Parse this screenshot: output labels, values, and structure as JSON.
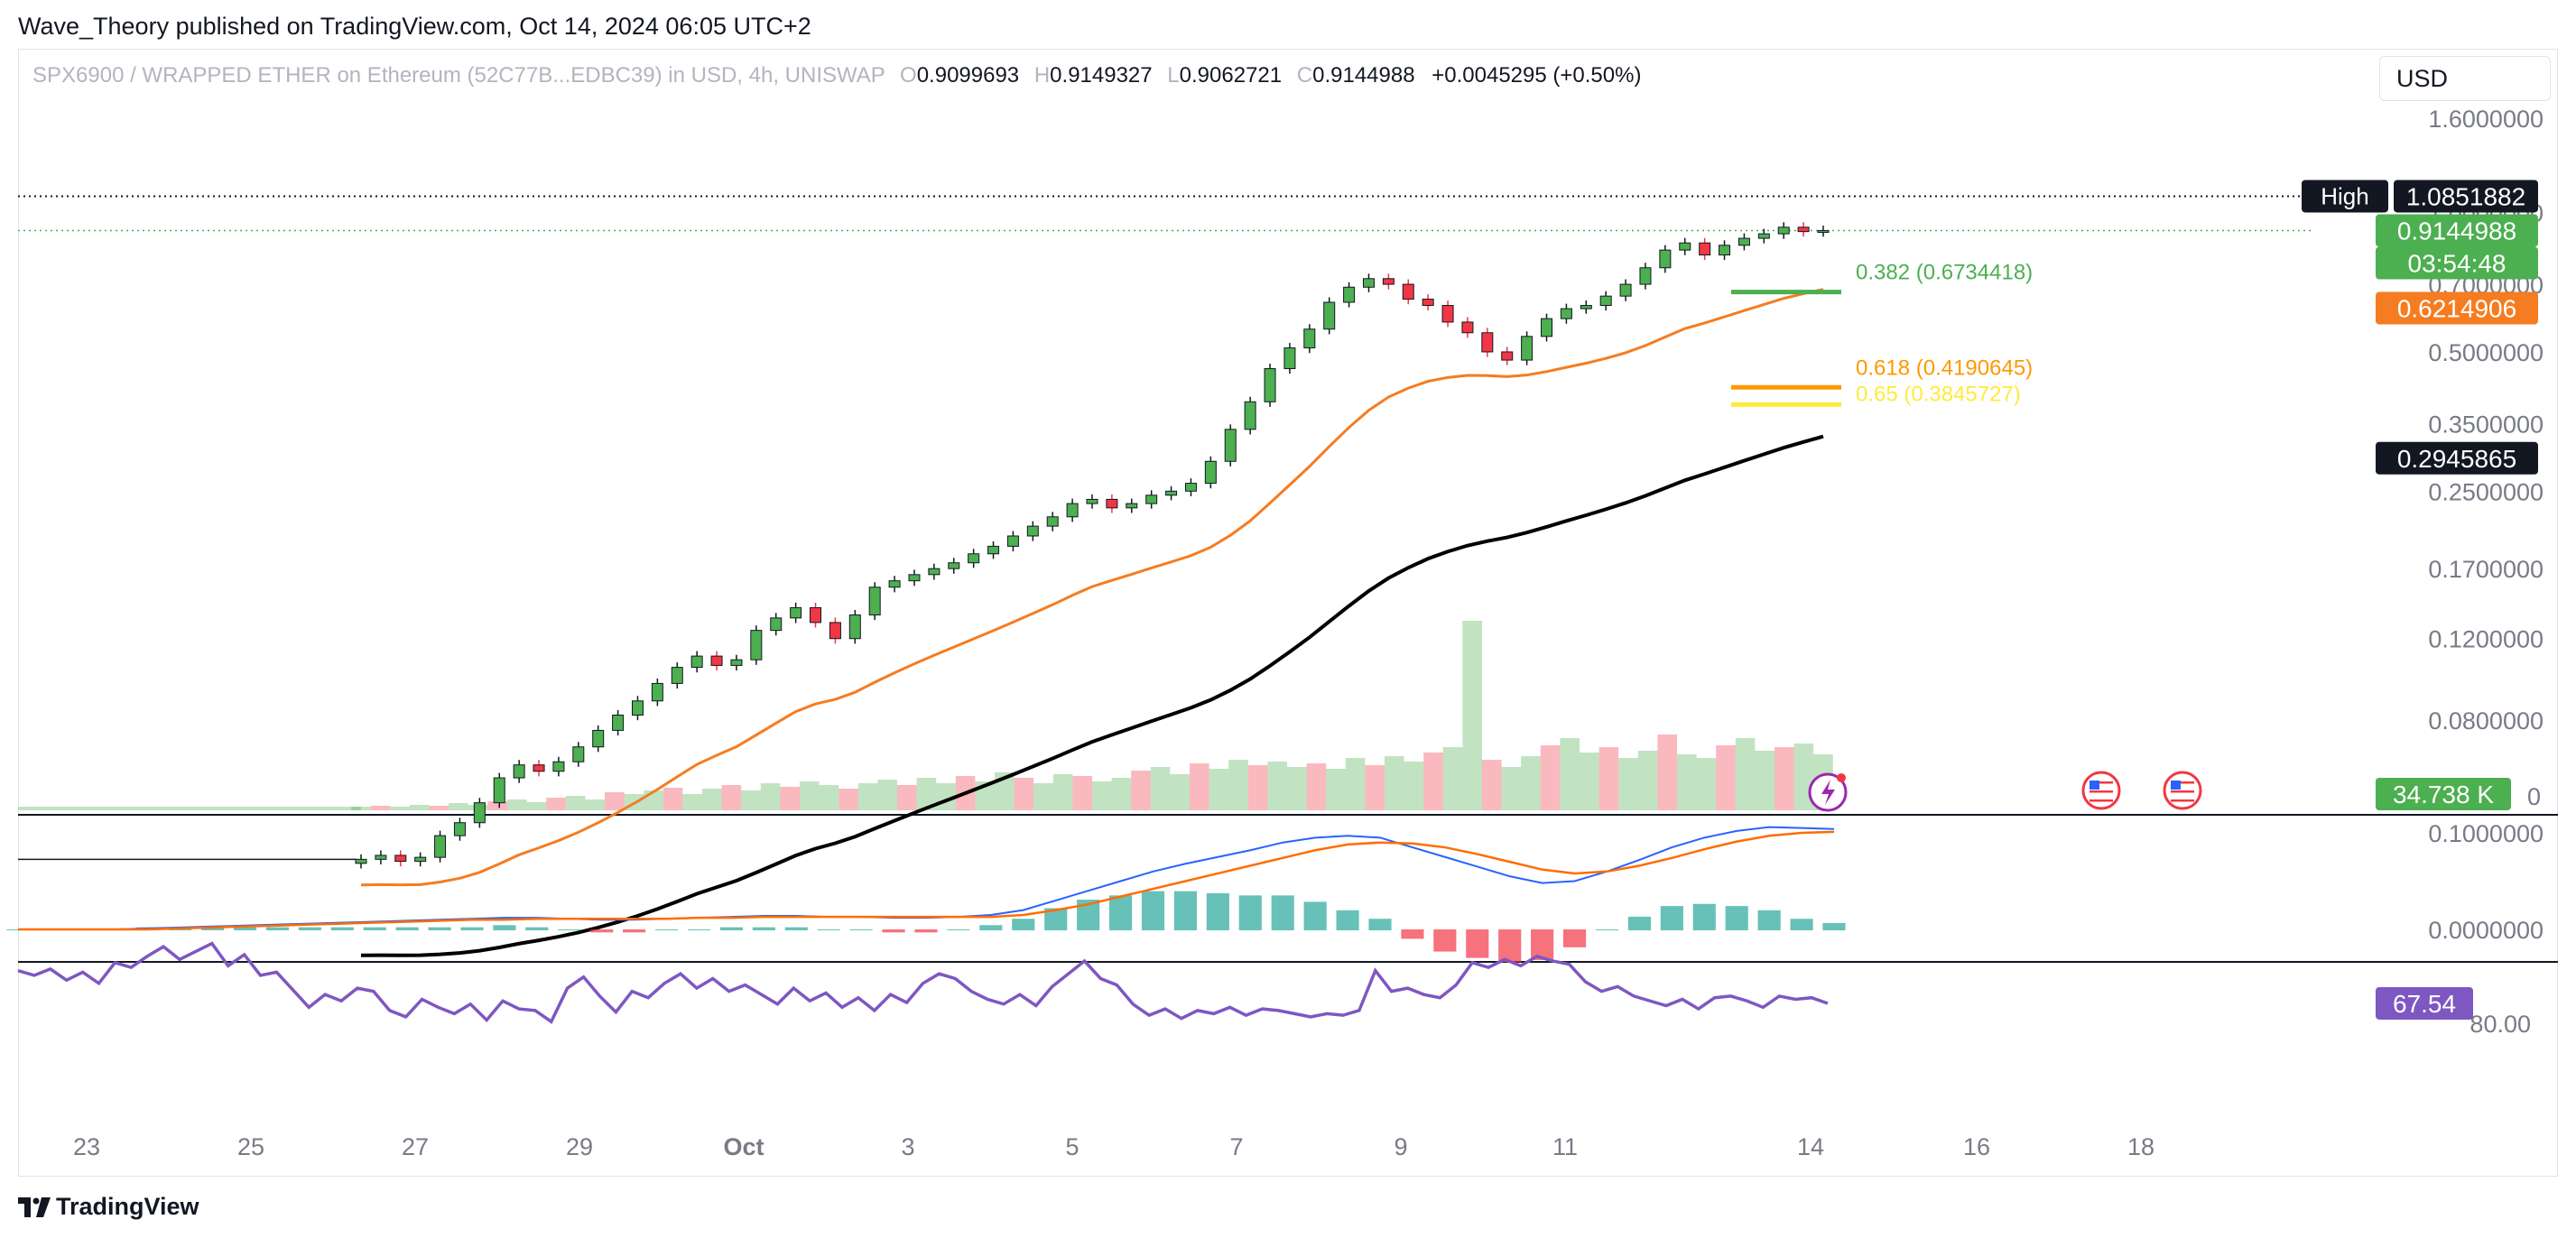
{
  "header": {
    "published": "Wave_Theory published on TradingView.com, Oct 14, 2024 06:05 UTC+2"
  },
  "legend": {
    "symbol": "SPX6900 / WRAPPED ETHER on Ethereum (52C77B...EDBC39) in USD, 4h, UNISWAP",
    "o_label": "O",
    "o": "0.9099693",
    "h_label": "H",
    "h": "0.9149327",
    "l_label": "L",
    "l": "0.9062721",
    "c_label": "C",
    "c": "0.9144988",
    "change": "+0.0045295 (+0.50%)"
  },
  "currency": "USD",
  "footer": {
    "brand": "TradingView"
  },
  "colors": {
    "up": "#26a69a",
    "candle_up": "#4caf50",
    "down": "#f23645",
    "ema50": "#f57c20",
    "ema200": "#000000",
    "macd": "#2962ff",
    "signal": "#ff6d00",
    "rsi": "#7e57c2",
    "fib382": "#4caf50",
    "fib618": "#ff9800",
    "fib65": "#ffeb3b"
  },
  "chart_data": [
    {
      "type": "candlestick",
      "title": "SPX6900 / WRAPPED ETHER on Ethereum (52C77B...EDBC39) in USD, 4h, UNISWAP",
      "scale": "log",
      "price_axis_ticks": [
        "1.6000000",
        "1.0000000",
        "0.7000000",
        "0.5000000",
        "0.3500000",
        "0.2500000",
        "0.1700000",
        "0.1200000",
        "0.0800000"
      ],
      "time_axis_ticks": [
        "23",
        "25",
        "27",
        "29",
        "Oct",
        "3",
        "5",
        "7",
        "9",
        "11",
        "14",
        "16",
        "18"
      ],
      "candle_closes_4h_approx": [
        0.04,
        0.0408,
        0.0396,
        0.0404,
        0.045,
        0.048,
        0.053,
        0.06,
        0.064,
        0.062,
        0.065,
        0.07,
        0.076,
        0.082,
        0.088,
        0.096,
        0.104,
        0.11,
        0.105,
        0.108,
        0.125,
        0.133,
        0.14,
        0.13,
        0.12,
        0.135,
        0.155,
        0.16,
        0.165,
        0.17,
        0.175,
        0.183,
        0.19,
        0.2,
        0.21,
        0.22,
        0.235,
        0.24,
        0.23,
        0.235,
        0.245,
        0.25,
        0.26,
        0.29,
        0.34,
        0.39,
        0.46,
        0.51,
        0.56,
        0.64,
        0.69,
        0.72,
        0.7,
        0.65,
        0.63,
        0.58,
        0.55,
        0.5,
        0.48,
        0.54,
        0.59,
        0.62,
        0.63,
        0.66,
        0.7,
        0.76,
        0.83,
        0.86,
        0.81,
        0.85,
        0.88,
        0.9,
        0.93,
        0.91,
        0.9145
      ],
      "series": [
        {
          "name": "EMA 50",
          "last": "0.6214906"
        },
        {
          "name": "EMA 200",
          "last": "0.2945865"
        }
      ],
      "labels": {
        "high_tag": "High",
        "high_value": "1.0851882",
        "last_price": "0.9144988",
        "countdown": "03:54:48",
        "ema50_value": "0.6214906",
        "ema200_value": "0.2945865",
        "volume_value": "34.738 K",
        "volume_zero": "0"
      },
      "fib_levels": [
        {
          "label": "0.382 (0.6734418)",
          "value": 0.6734418
        },
        {
          "label": "0.618 (0.4190645)",
          "value": 0.4190645
        },
        {
          "label": "0.65 (0.3845727)",
          "value": 0.3845727
        }
      ],
      "high": 1.0851882,
      "last": 0.9144988
    },
    {
      "type": "line",
      "name": "MACD",
      "price_axis_ticks": [
        "0.1000000",
        "0.0000000"
      ],
      "macd_approx": [
        0.0,
        0.0,
        0.0,
        0.0,
        0.001,
        0.002,
        0.003,
        0.004,
        0.005,
        0.006,
        0.007,
        0.008,
        0.009,
        0.01,
        0.011,
        0.012,
        0.012,
        0.011,
        0.01,
        0.01,
        0.011,
        0.012,
        0.013,
        0.014,
        0.014,
        0.013,
        0.013,
        0.012,
        0.012,
        0.013,
        0.015,
        0.02,
        0.03,
        0.04,
        0.05,
        0.06,
        0.068,
        0.075,
        0.082,
        0.09,
        0.095,
        0.097,
        0.095,
        0.085,
        0.075,
        0.065,
        0.055,
        0.048,
        0.05,
        0.06,
        0.072,
        0.085,
        0.095,
        0.102,
        0.106,
        0.105,
        0.104
      ],
      "signal_approx": [
        0.0,
        0.0,
        0.0,
        0.0,
        0.0,
        0.001,
        0.002,
        0.003,
        0.004,
        0.005,
        0.006,
        0.007,
        0.008,
        0.009,
        0.01,
        0.01,
        0.011,
        0.011,
        0.011,
        0.011,
        0.011,
        0.012,
        0.012,
        0.013,
        0.013,
        0.013,
        0.013,
        0.013,
        0.013,
        0.013,
        0.013,
        0.015,
        0.02,
        0.026,
        0.034,
        0.042,
        0.05,
        0.058,
        0.066,
        0.074,
        0.082,
        0.088,
        0.09,
        0.089,
        0.085,
        0.078,
        0.07,
        0.062,
        0.058,
        0.06,
        0.066,
        0.074,
        0.083,
        0.091,
        0.097,
        0.1,
        0.101
      ]
    },
    {
      "type": "line",
      "name": "RSI",
      "price_axis_ticks": [
        "80.00"
      ],
      "band": [
        30,
        70
      ],
      "last_label": "67.54",
      "values_approx": [
        47,
        50,
        46,
        53,
        48,
        55,
        42,
        45,
        38,
        32,
        40,
        35,
        30,
        44,
        37,
        50,
        48,
        59,
        70,
        62,
        66,
        58,
        60,
        72,
        76,
        65,
        70,
        74,
        68,
        78,
        66,
        71,
        72,
        79,
        58,
        51,
        63,
        73,
        60,
        64,
        55,
        49,
        58,
        52,
        60,
        56,
        62,
        68,
        58,
        66,
        61,
        70,
        64,
        72,
        62,
        67,
        55,
        49,
        52,
        60,
        65,
        68,
        62,
        69,
        57,
        49,
        41,
        52,
        56,
        68,
        75,
        71,
        77,
        72,
        74,
        70,
        75,
        71,
        72,
        74,
        76,
        74,
        75,
        72,
        47,
        60,
        58,
        62,
        64,
        56,
        42,
        45,
        40,
        44,
        38,
        41,
        43,
        54,
        60,
        57,
        63,
        66,
        69,
        65,
        71,
        64,
        63,
        66,
        70,
        63,
        65,
        64,
        67.54
      ]
    }
  ]
}
